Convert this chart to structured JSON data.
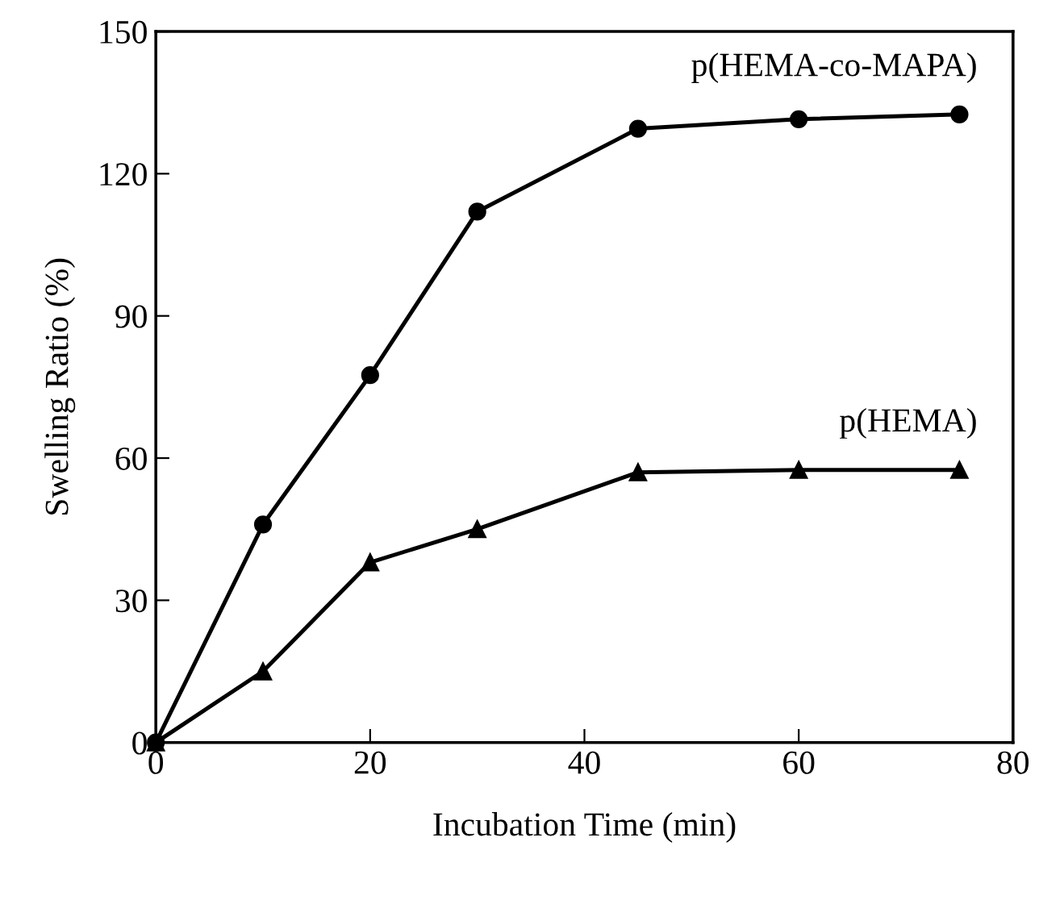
{
  "chart_data": {
    "type": "line",
    "xlabel": "Incubation Time (min)",
    "ylabel": "Swelling Ratio (%)",
    "xlim": [
      0,
      80
    ],
    "xticks": [
      0,
      20,
      40,
      60,
      80
    ],
    "ylim": [
      0,
      150
    ],
    "yticks": [
      0,
      30,
      60,
      90,
      120,
      150
    ],
    "grid": false,
    "legend": false,
    "line_style": "solid",
    "series": [
      {
        "name": "p(HEMA-co-MAPA)",
        "color": "#000000",
        "marker": "circle",
        "x": [
          0,
          10,
          20,
          30,
          45,
          60,
          75
        ],
        "values": [
          0,
          46,
          77.5,
          112,
          129.5,
          131.5,
          132.5
        ]
      },
      {
        "name": "p(HEMA)",
        "color": "#000000",
        "marker": "triangle",
        "x": [
          0,
          10,
          20,
          30,
          45,
          60,
          75
        ],
        "values": [
          0,
          15,
          38,
          45,
          57,
          57.5,
          57.5
        ]
      }
    ]
  }
}
